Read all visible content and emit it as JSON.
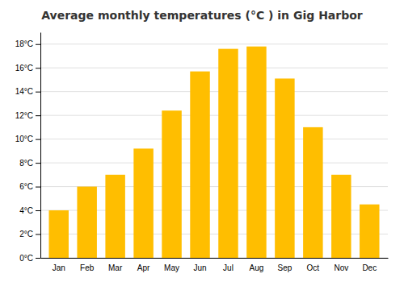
{
  "chart_data": {
    "type": "bar",
    "title": "Average monthly temperatures (°C ) in Gig Harbor",
    "categories": [
      "Jan",
      "Feb",
      "Mar",
      "Apr",
      "May",
      "Jun",
      "Jul",
      "Aug",
      "Sep",
      "Oct",
      "Nov",
      "Dec"
    ],
    "values": [
      4.0,
      6.0,
      7.0,
      9.2,
      12.4,
      15.7,
      17.6,
      17.8,
      15.1,
      11.0,
      7.0,
      4.5
    ],
    "color": "#FFBE00",
    "ylim": [
      0,
      19
    ],
    "yticks": [
      {
        "value": 0,
        "label": "0°C"
      },
      {
        "value": 2,
        "label": "2°C"
      },
      {
        "value": 4,
        "label": "4°C"
      },
      {
        "value": 6,
        "label": "6°C"
      },
      {
        "value": 8,
        "label": "8°C"
      },
      {
        "value": 10,
        "label": "10°C"
      },
      {
        "value": 12,
        "label": "12°C"
      },
      {
        "value": 14,
        "label": "14°C"
      },
      {
        "value": 16,
        "label": "16°C"
      },
      {
        "value": 18,
        "label": "18°C"
      }
    ],
    "grid": true
  }
}
